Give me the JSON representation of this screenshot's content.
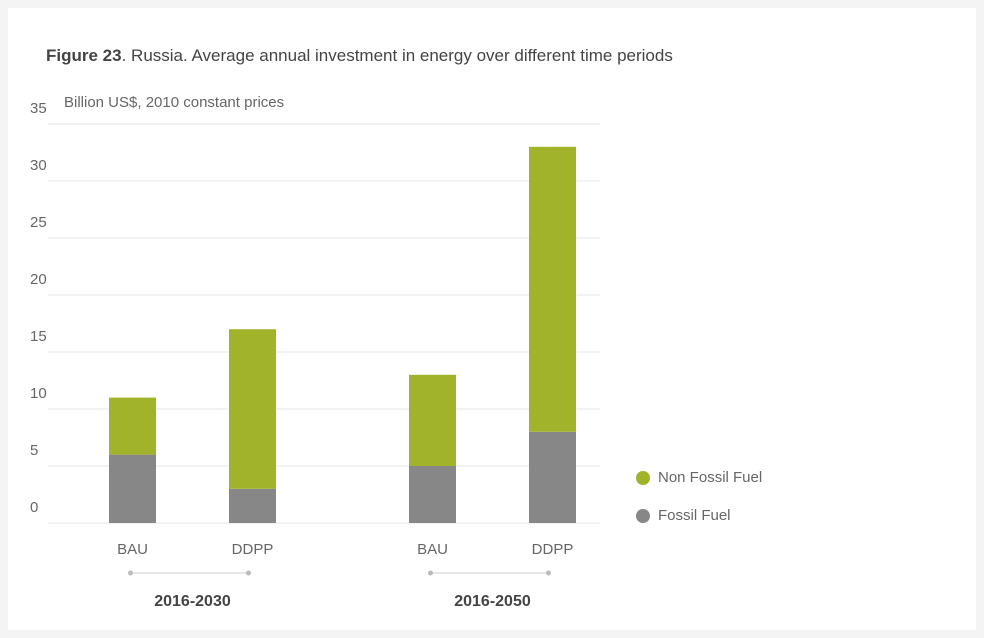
{
  "chart_data": {
    "type": "stacked_bar",
    "figure_label": "Figure 23",
    "title": ". Russia. Average annual investment in energy over different time periods",
    "y_label": "Billion US$, 2010 constant prices",
    "categories": [
      "BAU",
      "DDPP",
      "BAU",
      "DDPP"
    ],
    "groups": [
      "2016-2030",
      "2016-2050"
    ],
    "series": [
      {
        "name": "Fossil Fuel",
        "color": "#878787",
        "values": [
          6,
          3,
          5,
          8
        ]
      },
      {
        "name": "Non Fossil Fuel",
        "color": "#a1b32b",
        "values": [
          5,
          14,
          8,
          25
        ]
      }
    ],
    "ylim": [
      0,
      35
    ],
    "yticks": [
      0,
      5,
      10,
      15,
      20,
      25,
      30,
      35
    ],
    "grid": true
  }
}
